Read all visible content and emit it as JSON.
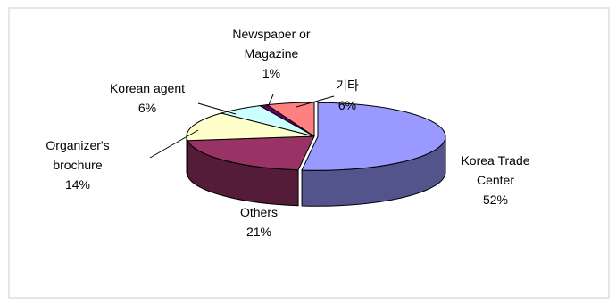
{
  "chart_data": {
    "type": "pie",
    "style": "3d-exploded",
    "title": "",
    "legend": "none",
    "slices": [
      {
        "label_lines": [
          "Korea Trade",
          "Center"
        ],
        "value": 52,
        "value_label": "52%",
        "color": "#9999ff"
      },
      {
        "label_lines": [
          "Others"
        ],
        "value": 21,
        "value_label": "21%",
        "color": "#993366"
      },
      {
        "label_lines": [
          "Organizer's",
          "brochure"
        ],
        "value": 14,
        "value_label": "14%",
        "color": "#ffffcc"
      },
      {
        "label_lines": [
          "Korean agent"
        ],
        "value": 6,
        "value_label": "6%",
        "color": "#ccffff"
      },
      {
        "label_lines": [
          "Newspaper or",
          "Magazine"
        ],
        "value": 1,
        "value_label": "1%",
        "color": "#660066"
      },
      {
        "label_lines": [
          "기타"
        ],
        "value": 6,
        "value_label": "6%",
        "color": "#ff8080"
      }
    ]
  }
}
